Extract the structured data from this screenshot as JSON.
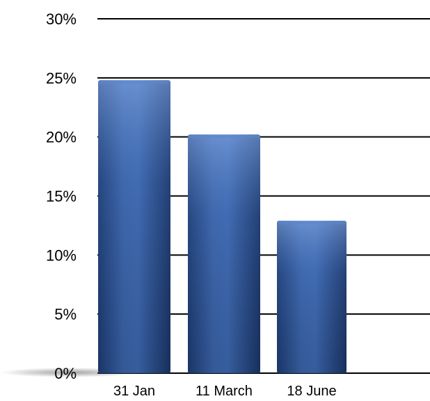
{
  "chart_data": {
    "type": "bar",
    "categories": [
      "31 Jan",
      "11 March",
      "18 June"
    ],
    "values": [
      24.8,
      20.2,
      12.9
    ],
    "ylim": [
      0,
      30
    ],
    "yticks": [
      0,
      5,
      10,
      15,
      20,
      25,
      30
    ],
    "ytick_labels": [
      "0%",
      "5%",
      "10%",
      "15%",
      "20%",
      "25%",
      "30%"
    ],
    "grid": true,
    "legend": "none",
    "bar_color": "#2f5597",
    "bar_highlight_color": "#5b86cf",
    "bar_shadow_color": "#1c3868"
  }
}
